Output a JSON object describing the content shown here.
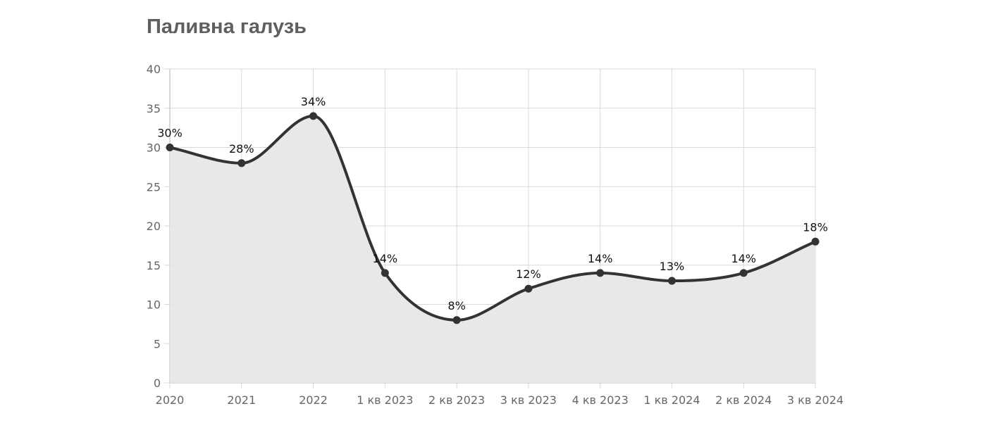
{
  "chart_data": {
    "type": "line",
    "title": "Паливна галузь",
    "categories": [
      "2020",
      "2021",
      "2022",
      "1 кв 2023",
      "2 кв 2023",
      "3 кв 2023",
      "4 кв 2023",
      "1 кв 2024",
      "2 кв 2024",
      "3 кв 2024"
    ],
    "series": [
      {
        "values": [
          30,
          28,
          34,
          14,
          8,
          12,
          14,
          13,
          14,
          18
        ]
      }
    ],
    "data_labels": [
      "30%",
      "28%",
      "34%",
      "14%",
      "8%",
      "12%",
      "14%",
      "13%",
      "14%",
      "18%"
    ],
    "y_ticks": [
      0,
      5,
      10,
      15,
      20,
      25,
      30,
      35,
      40
    ],
    "ylim": [
      0,
      40
    ],
    "grid": true,
    "line_color": "#333333",
    "fill_color": "#e5e5e5",
    "grid_color": "#d9d9d9"
  }
}
